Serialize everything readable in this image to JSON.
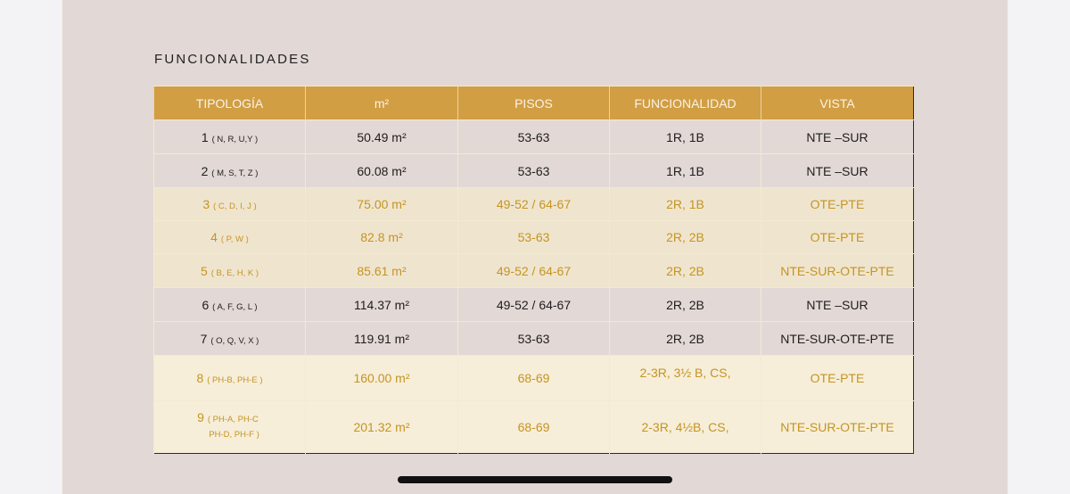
{
  "title": "FUNCIONALIDADES",
  "table": {
    "headers": [
      "TIPOLOGÍA",
      "m²",
      "PISOS",
      "FUNCIONALIDAD",
      "VISTA"
    ],
    "rows": [
      {
        "num": "1",
        "sub": "( N, R, U,Y )",
        "m2": "50.49 m²",
        "pisos": "53-63",
        "func": "1R, 1B",
        "vista": "NTE –SUR"
      },
      {
        "num": "2",
        "sub": "( M, S, T, Z )",
        "m2": "60.08 m²",
        "pisos": "53-63",
        "func": "1R, 1B",
        "vista": "NTE –SUR"
      },
      {
        "num": "3",
        "sub": "( C, D, I, J )",
        "m2": "75.00 m²",
        "pisos": "49-52 / 64-67",
        "func": "2R, 1B",
        "vista": "OTE-PTE"
      },
      {
        "num": "4",
        "sub": "( P, W )",
        "m2": "82.8 m²",
        "pisos": "53-63",
        "func": "2R, 2B",
        "vista": "OTE-PTE"
      },
      {
        "num": "5",
        "sub": "( B, E, H, K )",
        "m2": "85.61 m²",
        "pisos": "49-52 / 64-67",
        "func": "2R, 2B",
        "vista": "NTE-SUR-OTE-PTE"
      },
      {
        "num": "6",
        "sub": "( A, F, G, L )",
        "m2": "114.37 m²",
        "pisos": "49-52 / 64-67",
        "func": "2R, 2B",
        "vista": "NTE –SUR"
      },
      {
        "num": "7",
        "sub": "( O, Q, V, X )",
        "m2": "119.91 m²",
        "pisos": "53-63",
        "func": "2R, 2B",
        "vista": "NTE-SUR-OTE-PTE"
      },
      {
        "num": "8",
        "sub": "( PH-B, PH-E )",
        "m2": "160.00 m²",
        "pisos": "68-69",
        "func": "2-3R, 3½ B, CS,",
        "vista": "OTE-PTE"
      },
      {
        "num": "9",
        "sub": "( PH-A, PH-C",
        "sub2": "PH-D, PH-F )",
        "m2": "201.32 m²",
        "pisos": "68-69",
        "func": "2-3R, 4½B, CS,",
        "vista": "NTE-SUR-OTE-PTE"
      }
    ]
  },
  "colors": {
    "header_bg": "#d19e44",
    "accent_text": "#c59422",
    "page_bg": "#e2d8d5"
  }
}
